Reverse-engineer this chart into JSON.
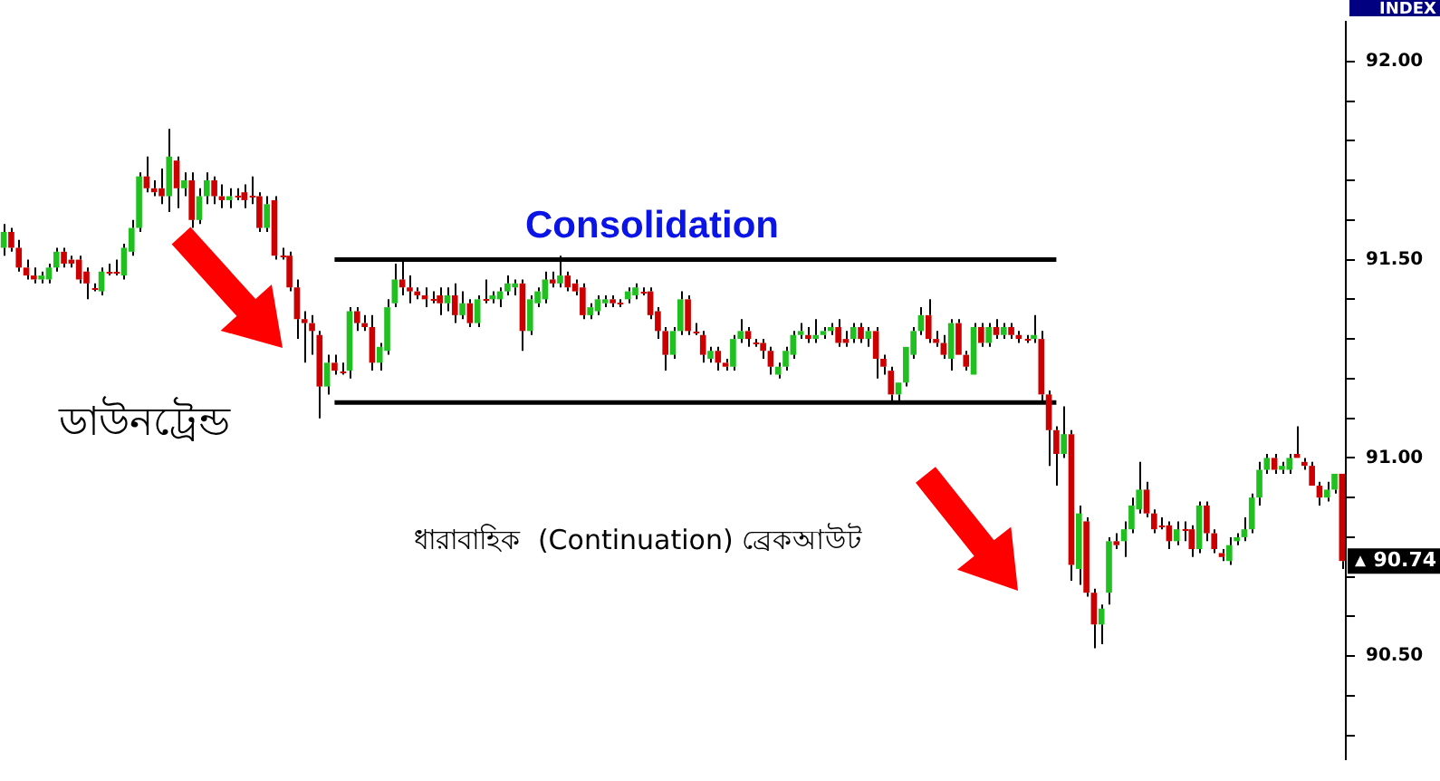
{
  "chart_data": {
    "type": "candlestick",
    "categories": [
      null,
      null,
      null,
      null,
      null,
      null,
      null,
      null,
      null,
      null,
      null,
      null,
      null,
      null,
      null,
      null,
      null,
      null,
      null,
      null,
      null,
      null,
      null,
      null,
      null,
      null,
      null,
      null,
      null,
      null,
      null,
      null,
      null,
      null,
      null,
      null,
      null,
      null,
      null,
      null,
      null,
      null,
      null,
      null,
      null,
      null,
      null,
      null,
      null,
      null,
      null,
      null,
      null,
      null,
      null,
      null,
      null,
      null,
      null,
      null,
      null,
      null,
      null,
      null,
      null,
      null,
      null,
      null,
      null,
      null,
      null,
      null,
      null,
      null,
      null,
      null,
      null,
      null,
      null,
      null,
      null,
      null,
      null,
      null,
      null,
      null,
      null,
      null,
      null,
      null,
      null,
      null,
      null,
      null,
      null,
      null,
      null,
      null,
      null,
      null,
      null,
      null,
      null,
      null,
      null,
      null,
      null,
      null,
      null,
      null,
      null,
      null,
      null,
      null,
      null,
      null,
      null,
      null,
      null,
      null,
      null,
      null,
      null,
      null,
      null,
      null,
      null,
      null,
      null,
      null,
      null,
      null,
      null,
      null,
      null,
      null,
      null,
      null,
      null,
      null,
      null,
      null,
      null,
      null,
      null,
      null,
      null,
      null,
      null,
      null,
      null,
      null,
      null,
      null,
      null,
      null,
      null,
      null,
      null,
      null,
      null,
      null,
      null,
      null,
      null,
      null,
      null,
      null,
      null,
      null,
      null,
      null,
      null,
      null,
      null,
      null,
      null,
      null,
      null
    ],
    "ohlc": [
      [
        91.53,
        91.59,
        91.51,
        91.57
      ],
      [
        91.57,
        91.58,
        91.52,
        91.53
      ],
      [
        91.53,
        91.55,
        91.47,
        91.48
      ],
      [
        91.48,
        91.5,
        91.45,
        91.46
      ],
      [
        91.46,
        91.48,
        91.44,
        91.45
      ],
      [
        91.45,
        91.47,
        91.44,
        91.46
      ],
      [
        91.45,
        91.49,
        91.44,
        91.48
      ],
      [
        91.48,
        91.53,
        91.47,
        91.52
      ],
      [
        91.52,
        91.53,
        91.48,
        91.49
      ],
      [
        91.5,
        91.51,
        91.48,
        91.49
      ],
      [
        91.5,
        91.51,
        91.44,
        91.45
      ],
      [
        91.47,
        91.48,
        91.4,
        91.44
      ],
      [
        91.43,
        91.44,
        91.42,
        91.43
      ],
      [
        91.42,
        91.48,
        91.41,
        91.47
      ],
      [
        91.47,
        91.49,
        91.46,
        91.47
      ],
      [
        91.47,
        91.5,
        91.46,
        91.47
      ],
      [
        91.46,
        91.54,
        91.45,
        91.53
      ],
      [
        91.52,
        91.6,
        91.51,
        91.58
      ],
      [
        91.58,
        91.72,
        91.57,
        91.71
      ],
      [
        91.71,
        91.76,
        91.67,
        91.68
      ],
      [
        91.68,
        91.7,
        91.66,
        91.67
      ],
      [
        91.68,
        91.73,
        91.64,
        91.66
      ],
      [
        91.66,
        91.83,
        91.62,
        91.76
      ],
      [
        91.75,
        91.76,
        91.63,
        91.68
      ],
      [
        91.68,
        91.72,
        91.66,
        91.7
      ],
      [
        91.7,
        91.72,
        91.58,
        91.6
      ],
      [
        91.6,
        91.68,
        91.59,
        91.66
      ],
      [
        91.66,
        91.72,
        91.64,
        91.7
      ],
      [
        91.7,
        91.71,
        91.64,
        91.66
      ],
      [
        91.66,
        91.69,
        91.63,
        91.65
      ],
      [
        91.65,
        91.68,
        91.63,
        91.66
      ],
      [
        91.66,
        91.68,
        91.65,
        91.66
      ],
      [
        91.67,
        91.69,
        91.63,
        91.65
      ],
      [
        91.66,
        91.71,
        91.64,
        91.66
      ],
      [
        91.66,
        91.67,
        91.57,
        91.58
      ],
      [
        91.58,
        91.66,
        91.57,
        91.64
      ],
      [
        91.65,
        91.66,
        91.5,
        91.51
      ],
      [
        91.51,
        91.53,
        91.5,
        91.51
      ],
      [
        91.51,
        91.52,
        91.42,
        91.43
      ],
      [
        91.43,
        91.45,
        91.3,
        91.35
      ],
      [
        91.35,
        91.37,
        91.24,
        91.34
      ],
      [
        91.34,
        91.36,
        91.26,
        91.32
      ],
      [
        91.31,
        91.32,
        91.1,
        91.18
      ],
      [
        91.18,
        91.26,
        91.16,
        91.24
      ],
      [
        91.24,
        91.26,
        91.21,
        91.22
      ],
      [
        91.22,
        91.24,
        91.21,
        91.22
      ],
      [
        91.22,
        91.38,
        91.2,
        91.37
      ],
      [
        91.37,
        91.38,
        91.32,
        91.34
      ],
      [
        91.34,
        91.36,
        91.32,
        91.33
      ],
      [
        91.33,
        91.36,
        91.22,
        91.24
      ],
      [
        91.24,
        91.29,
        91.22,
        91.28
      ],
      [
        91.27,
        91.4,
        91.26,
        91.38
      ],
      [
        91.39,
        91.49,
        91.38,
        91.45
      ],
      [
        91.45,
        91.5,
        91.41,
        91.43
      ],
      [
        91.43,
        91.46,
        91.39,
        91.42
      ],
      [
        91.42,
        91.43,
        91.4,
        91.41
      ],
      [
        91.41,
        91.43,
        91.38,
        91.4
      ],
      [
        91.4,
        91.42,
        91.39,
        91.4
      ],
      [
        91.41,
        91.43,
        91.36,
        91.39
      ],
      [
        91.39,
        91.43,
        91.37,
        91.41
      ],
      [
        91.41,
        91.44,
        91.34,
        91.36
      ],
      [
        91.36,
        91.42,
        91.35,
        91.39
      ],
      [
        91.39,
        91.4,
        91.33,
        91.34
      ],
      [
        91.34,
        91.41,
        91.33,
        91.4
      ],
      [
        91.4,
        91.45,
        91.39,
        91.4
      ],
      [
        91.4,
        91.42,
        91.39,
        91.41
      ],
      [
        91.4,
        91.43,
        91.38,
        91.42
      ],
      [
        91.42,
        91.46,
        91.41,
        91.44
      ],
      [
        91.43,
        91.45,
        91.41,
        91.44
      ],
      [
        91.44,
        91.45,
        91.27,
        91.32
      ],
      [
        91.32,
        91.41,
        91.31,
        91.4
      ],
      [
        91.39,
        91.43,
        91.38,
        91.42
      ],
      [
        91.4,
        91.47,
        91.39,
        91.45
      ],
      [
        91.45,
        91.47,
        91.43,
        91.44
      ],
      [
        91.44,
        91.51,
        91.43,
        91.46
      ],
      [
        91.46,
        91.47,
        91.42,
        91.43
      ],
      [
        91.44,
        91.45,
        91.41,
        91.42
      ],
      [
        91.43,
        91.44,
        91.35,
        91.36
      ],
      [
        91.36,
        91.39,
        91.35,
        91.38
      ],
      [
        91.37,
        91.41,
        91.36,
        91.4
      ],
      [
        91.39,
        91.41,
        91.38,
        91.4
      ],
      [
        91.4,
        91.41,
        91.38,
        91.39
      ],
      [
        91.39,
        91.4,
        91.38,
        91.39
      ],
      [
        91.4,
        91.43,
        91.39,
        91.42
      ],
      [
        91.41,
        91.44,
        91.4,
        91.43
      ],
      [
        91.42,
        91.43,
        91.41,
        91.42
      ],
      [
        91.42,
        91.43,
        91.35,
        91.36
      ],
      [
        91.37,
        91.38,
        91.3,
        91.32
      ],
      [
        91.32,
        91.33,
        91.22,
        91.26
      ],
      [
        91.26,
        91.33,
        91.25,
        91.32
      ],
      [
        91.32,
        91.42,
        91.31,
        91.4
      ],
      [
        91.4,
        91.41,
        91.31,
        91.32
      ],
      [
        91.32,
        91.34,
        91.31,
        91.32
      ],
      [
        91.31,
        91.32,
        91.24,
        91.26
      ],
      [
        91.25,
        91.28,
        91.24,
        91.27
      ],
      [
        91.27,
        91.28,
        91.22,
        91.24
      ],
      [
        91.24,
        91.25,
        91.22,
        91.23
      ],
      [
        91.23,
        91.31,
        91.22,
        91.3
      ],
      [
        91.3,
        91.35,
        91.29,
        91.32
      ],
      [
        91.32,
        91.33,
        91.28,
        91.3
      ],
      [
        91.29,
        91.3,
        91.28,
        91.29
      ],
      [
        91.29,
        91.3,
        91.25,
        91.27
      ],
      [
        91.27,
        91.28,
        91.21,
        91.23
      ],
      [
        91.21,
        91.24,
        91.2,
        91.23
      ],
      [
        91.23,
        91.28,
        91.22,
        91.27
      ],
      [
        91.26,
        91.32,
        91.25,
        91.31
      ],
      [
        91.31,
        91.34,
        91.3,
        91.32
      ],
      [
        91.31,
        91.33,
        91.29,
        91.3
      ],
      [
        91.3,
        91.35,
        91.29,
        91.31
      ],
      [
        91.31,
        91.33,
        91.3,
        91.32
      ],
      [
        91.32,
        91.34,
        91.31,
        91.33
      ],
      [
        91.33,
        91.35,
        91.28,
        91.29
      ],
      [
        91.3,
        91.32,
        91.28,
        91.29
      ],
      [
        91.3,
        91.34,
        91.29,
        91.33
      ],
      [
        91.33,
        91.34,
        91.29,
        91.3
      ],
      [
        91.3,
        91.33,
        91.28,
        91.32
      ],
      [
        91.32,
        91.33,
        91.2,
        91.25
      ],
      [
        91.25,
        91.26,
        91.21,
        91.23
      ],
      [
        91.22,
        91.23,
        91.14,
        91.16
      ],
      [
        91.16,
        91.19,
        91.14,
        91.19
      ],
      [
        91.19,
        91.28,
        91.18,
        91.28
      ],
      [
        91.26,
        91.33,
        91.25,
        91.32
      ],
      [
        91.32,
        91.38,
        91.31,
        91.36
      ],
      [
        91.36,
        91.4,
        91.29,
        91.3
      ],
      [
        91.3,
        91.32,
        91.28,
        91.29
      ],
      [
        91.29,
        91.31,
        91.25,
        91.26
      ],
      [
        91.25,
        91.35,
        91.22,
        91.34
      ],
      [
        91.34,
        91.35,
        91.26,
        91.26
      ],
      [
        91.26,
        91.27,
        91.22,
        91.23
      ],
      [
        91.21,
        91.34,
        91.21,
        91.33
      ],
      [
        91.33,
        91.34,
        91.28,
        91.29
      ],
      [
        91.29,
        91.34,
        91.28,
        91.33
      ],
      [
        91.33,
        91.35,
        91.3,
        91.31
      ],
      [
        91.31,
        91.34,
        91.3,
        91.33
      ],
      [
        91.33,
        91.34,
        91.3,
        91.31
      ],
      [
        91.31,
        91.32,
        91.29,
        91.3
      ],
      [
        91.3,
        91.31,
        91.29,
        91.3
      ],
      [
        91.3,
        91.36,
        91.29,
        91.31
      ],
      [
        91.3,
        91.32,
        91.14,
        91.16
      ],
      [
        91.16,
        91.17,
        90.98,
        91.07
      ],
      [
        91.07,
        91.08,
        90.93,
        91.01
      ],
      [
        91.01,
        91.13,
        91.0,
        91.06
      ],
      [
        91.06,
        91.07,
        90.69,
        90.73
      ],
      [
        90.72,
        90.88,
        90.68,
        90.86
      ],
      [
        90.84,
        90.85,
        90.65,
        90.66
      ],
      [
        90.66,
        90.67,
        90.52,
        90.58
      ],
      [
        90.58,
        90.63,
        90.53,
        90.62
      ],
      [
        90.66,
        90.8,
        90.63,
        90.79
      ],
      [
        90.79,
        90.81,
        90.77,
        90.78
      ],
      [
        90.79,
        90.84,
        90.75,
        90.82
      ],
      [
        90.82,
        90.9,
        90.81,
        90.88
      ],
      [
        90.87,
        90.99,
        90.86,
        90.92
      ],
      [
        90.92,
        90.94,
        90.85,
        90.86
      ],
      [
        90.86,
        90.87,
        90.81,
        90.82
      ],
      [
        90.83,
        90.85,
        90.82,
        90.83
      ],
      [
        90.83,
        90.84,
        90.77,
        90.79
      ],
      [
        90.79,
        90.84,
        90.78,
        90.82
      ],
      [
        90.82,
        90.84,
        90.79,
        90.82
      ],
      [
        90.82,
        90.83,
        90.75,
        90.77
      ],
      [
        90.77,
        90.89,
        90.76,
        90.88
      ],
      [
        90.88,
        90.89,
        90.79,
        90.81
      ],
      [
        90.81,
        90.82,
        90.76,
        90.77
      ],
      [
        90.76,
        90.77,
        90.74,
        90.75
      ],
      [
        90.74,
        90.8,
        90.73,
        90.78
      ],
      [
        90.79,
        90.81,
        90.78,
        90.8
      ],
      [
        90.8,
        90.85,
        90.79,
        90.82
      ],
      [
        90.82,
        90.91,
        90.81,
        90.9
      ],
      [
        90.9,
        90.99,
        90.88,
        90.97
      ],
      [
        90.97,
        91.01,
        90.96,
        91.0
      ],
      [
        91.0,
        91.01,
        90.96,
        90.97
      ],
      [
        90.97,
        90.99,
        90.96,
        90.98
      ],
      [
        90.97,
        91.01,
        90.96,
        91.0
      ],
      [
        91.01,
        91.08,
        91.0,
        91.0
      ],
      [
        90.99,
        91.0,
        90.97,
        90.98
      ],
      [
        90.98,
        90.99,
        90.93,
        90.93
      ],
      [
        90.93,
        90.94,
        90.88,
        90.9
      ],
      [
        90.9,
        90.94,
        90.89,
        90.92
      ],
      [
        90.92,
        90.96,
        90.91,
        90.96
      ],
      [
        90.96,
        90.96,
        90.72,
        90.74
      ]
    ],
    "colors": [
      "#1fc01f",
      "#cc0000",
      "#cc0000",
      "#cc0000",
      "#cc0000",
      "#1fc01f",
      "#1fc01f",
      "#1fc01f",
      "#cc0000",
      "#cc0000",
      "#cc0000",
      "#cc0000",
      "#cc0000",
      "#1fc01f",
      "#cc0000",
      "#cc0000",
      "#1fc01f",
      "#1fc01f",
      "#1fc01f",
      "#cc0000",
      "#cc0000",
      "#cc0000",
      "#1fc01f",
      "#cc0000",
      "#1fc01f",
      "#cc0000",
      "#1fc01f",
      "#1fc01f",
      "#cc0000",
      "#cc0000",
      "#1fc01f",
      "#cc0000",
      "#cc0000",
      "#cc0000",
      "#cc0000",
      "#1fc01f",
      "#cc0000",
      "#cc0000",
      "#cc0000",
      "#cc0000",
      "#cc0000",
      "#cc0000",
      "#cc0000",
      "#1fc01f",
      "#cc0000",
      "#cc0000",
      "#1fc01f",
      "#cc0000",
      "#cc0000",
      "#cc0000",
      "#1fc01f",
      "#1fc01f",
      "#1fc01f",
      "#cc0000",
      "#cc0000",
      "#cc0000",
      "#cc0000",
      "#cc0000",
      "#cc0000",
      "#1fc01f",
      "#cc0000",
      "#1fc01f",
      "#cc0000",
      "#1fc01f",
      "#cc0000",
      "#1fc01f",
      "#1fc01f",
      "#1fc01f",
      "#1fc01f",
      "#cc0000",
      "#1fc01f",
      "#1fc01f",
      "#1fc01f",
      "#cc0000",
      "#1fc01f",
      "#cc0000",
      "#cc0000",
      "#cc0000",
      "#1fc01f",
      "#1fc01f",
      "#1fc01f",
      "#cc0000",
      "#cc0000",
      "#1fc01f",
      "#1fc01f",
      "#cc0000",
      "#cc0000",
      "#cc0000",
      "#cc0000",
      "#1fc01f",
      "#1fc01f",
      "#cc0000",
      "#cc0000",
      "#cc0000",
      "#1fc01f",
      "#cc0000",
      "#cc0000",
      "#1fc01f",
      "#1fc01f",
      "#cc0000",
      "#cc0000",
      "#cc0000",
      "#cc0000",
      "#1fc01f",
      "#1fc01f",
      "#1fc01f",
      "#1fc01f",
      "#cc0000",
      "#1fc01f",
      "#1fc01f",
      "#1fc01f",
      "#cc0000",
      "#cc0000",
      "#1fc01f",
      "#cc0000",
      "#1fc01f",
      "#cc0000",
      "#cc0000",
      "#cc0000",
      "#1fc01f",
      "#1fc01f",
      "#1fc01f",
      "#1fc01f",
      "#cc0000",
      "#cc0000",
      "#cc0000",
      "#1fc01f",
      "#cc0000",
      "#cc0000",
      "#1fc01f",
      "#cc0000",
      "#1fc01f",
      "#cc0000",
      "#1fc01f",
      "#cc0000",
      "#cc0000",
      "#cc0000",
      "#1fc01f",
      "#cc0000",
      "#cc0000",
      "#cc0000",
      "#1fc01f",
      "#cc0000",
      "#1fc01f",
      "#cc0000",
      "#cc0000",
      "#1fc01f",
      "#1fc01f",
      "#cc0000",
      "#1fc01f",
      "#1fc01f",
      "#1fc01f",
      "#cc0000",
      "#cc0000",
      "#cc0000",
      "#cc0000",
      "#1fc01f",
      "#cc0000",
      "#cc0000",
      "#1fc01f",
      "#cc0000",
      "#cc0000",
      "#cc0000",
      "#1fc01f",
      "#1fc01f",
      "#1fc01f",
      "#1fc01f",
      "#1fc01f",
      "#1fc01f",
      "#cc0000",
      "#1fc01f",
      "#1fc01f",
      "#cc0000",
      "#cc0000",
      "#cc0000",
      "#cc0000",
      "#1fc01f",
      "#1fc01f",
      "#cc0000"
    ],
    "ylim": [
      90.24,
      92.1
    ],
    "yticks": [
      {
        "value": 90.3,
        "label": null
      },
      {
        "value": 90.4,
        "label": null
      },
      {
        "value": 90.5,
        "label": "90.50"
      },
      {
        "value": 90.6,
        "label": null
      },
      {
        "value": 90.7,
        "label": null
      },
      {
        "value": 90.8,
        "label": null
      },
      {
        "value": 90.9,
        "label": null
      },
      {
        "value": 91.0,
        "label": "91.00"
      },
      {
        "value": 91.1,
        "label": null
      },
      {
        "value": 91.2,
        "label": null
      },
      {
        "value": 91.3,
        "label": null
      },
      {
        "value": 91.4,
        "label": null
      },
      {
        "value": 91.5,
        "label": "91.50"
      },
      {
        "value": 91.6,
        "label": null
      },
      {
        "value": 91.7,
        "label": null
      },
      {
        "value": 91.8,
        "label": null
      },
      {
        "value": 91.9,
        "label": null
      },
      {
        "value": 92.0,
        "label": "92.00"
      }
    ],
    "ref_lines": [
      {
        "axis": "y",
        "value": 91.5,
        "color": "#000000"
      },
      {
        "axis": "y",
        "value": 91.14,
        "color": "#000000"
      }
    ],
    "annotations": [
      "Consolidation",
      "ডাউনট্রেন্ড",
      "ধারাবাহিক  (Continuation) ব্রেকআউট",
      "INDEX",
      "90.74"
    ],
    "tick_labels": "y",
    "grid": false,
    "legend": false
  }
}
